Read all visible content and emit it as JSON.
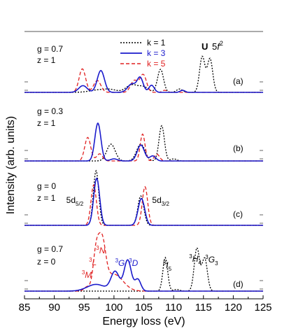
{
  "chart_data": {
    "type": "line",
    "title_element": "U",
    "title_config": "5f",
    "title_config_sup": "2",
    "xlabel": "Energy loss (eV)",
    "ylabel": "Intensity (arb. units)",
    "xlim": [
      85,
      125
    ],
    "x_ticks": [
      85,
      90,
      95,
      100,
      105,
      110,
      115,
      120,
      125
    ],
    "ylim": [
      0,
      4
    ],
    "grid": false,
    "legend_position": "top-center",
    "legend": [
      {
        "name": "k = 1",
        "color": "#000000",
        "dash": "2,2",
        "text_color": "#000000"
      },
      {
        "name": "k = 3",
        "color": "#1a1acc",
        "dash": "",
        "text_color": "#1a1acc"
      },
      {
        "name": "k = 5",
        "color": "#e02020",
        "dash": "5,3",
        "text_color": "#e02020"
      }
    ],
    "panels": [
      {
        "label": "(a)",
        "params": [
          "g = 0.7",
          "z = 1"
        ],
        "series": [
          {
            "k": 1,
            "peaks": [
              [
                97.5,
                0.06,
                1.5
              ],
              [
                99.5,
                0.05,
                1.0
              ],
              [
                103,
                0.18,
                1.0
              ],
              [
                105,
                0.12,
                0.8
              ],
              [
                107.8,
                0.55,
                0.5
              ],
              [
                111,
                0.08,
                0.5
              ],
              [
                114.8,
                0.85,
                0.45
              ],
              [
                116.1,
                0.8,
                0.45
              ]
            ]
          },
          {
            "k": 3,
            "peaks": [
              [
                94.8,
                0.16,
                0.7
              ],
              [
                97.8,
                0.52,
                0.6
              ],
              [
                103,
                0.2,
                0.7
              ],
              [
                104.4,
                0.34,
                0.5
              ],
              [
                106.3,
                0.17,
                0.45
              ],
              [
                111.5,
                0.05,
                0.4
              ]
            ]
          },
          {
            "k": 5,
            "peaks": [
              [
                94.7,
                0.56,
                0.55
              ],
              [
                97.2,
                0.28,
                0.6
              ],
              [
                103.4,
                0.28,
                0.6
              ],
              [
                104.9,
                0.42,
                0.55
              ],
              [
                108.5,
                0.05,
                0.4
              ]
            ]
          }
        ]
      },
      {
        "label": "(b)",
        "params": [
          "g = 0.3",
          "z = 1"
        ],
        "series": [
          {
            "k": 1,
            "peaks": [
              [
                99.5,
                0.4,
                0.7
              ],
              [
                104.5,
                0.4,
                0.7
              ],
              [
                108,
                0.84,
                0.45
              ],
              [
                110,
                0.05,
                0.5
              ]
            ]
          },
          {
            "k": 3,
            "peaks": [
              [
                97.3,
                0.9,
                0.5
              ],
              [
                100,
                0.05,
                0.6
              ],
              [
                104.5,
                0.38,
                0.6
              ],
              [
                106.5,
                0.12,
                0.5
              ]
            ]
          },
          {
            "k": 5,
            "peaks": [
              [
                95.6,
                0.56,
                0.5
              ],
              [
                97.6,
                0.17,
                0.5
              ],
              [
                104.8,
                0.64,
                0.4
              ],
              [
                107.2,
                0.16,
                0.45
              ]
            ]
          }
        ]
      },
      {
        "label": "(c)",
        "params": [
          "g = 0",
          "z = 1"
        ],
        "annotations": [
          {
            "text": "5d",
            "sub": "5/2",
            "x": 92.0
          },
          {
            "text": "5d",
            "sub": "3/2",
            "x": 106.4
          }
        ],
        "series": [
          {
            "k": 1,
            "peaks": [
              [
                97.0,
                1.3,
                0.45
              ],
              [
                104.5,
                0.7,
                0.5
              ]
            ]
          },
          {
            "k": 3,
            "peaks": [
              [
                97.1,
                1.12,
                0.5
              ],
              [
                104.6,
                0.64,
                0.55
              ]
            ]
          },
          {
            "k": 5,
            "peaks": [
              [
                96.6,
                0.96,
                0.45
              ],
              [
                105.2,
                0.92,
                0.45
              ]
            ]
          }
        ]
      },
      {
        "label": "(d)",
        "params": [
          "g = 0.7",
          "z = 0"
        ],
        "annotations": [
          {
            "text": "3N",
            "x": 97.0,
            "color": "#e02020"
          },
          {
            "text": "3L",
            "x": 95.8,
            "color": "#e02020"
          },
          {
            "text": "3M",
            "x": 94.6,
            "color": "#e02020"
          },
          {
            "text": "3G",
            "x": 100.2,
            "color": "#1a1acc"
          },
          {
            "text": "3D",
            "x": 102.5,
            "color": "#1a1acc"
          },
          {
            "text": "3I5",
            "x": 108.2,
            "color": "#000000"
          },
          {
            "text": "3H4",
            "x": 112.6,
            "color": "#000000"
          },
          {
            "text": "3G3",
            "x": 115.3,
            "color": "#000000"
          }
        ],
        "series": [
          {
            "k": 1,
            "peaks": [
              [
                108.6,
                0.8,
                0.4
              ],
              [
                110.5,
                0.04,
                0.5
              ],
              [
                113.9,
                1.02,
                0.45
              ],
              [
                115.2,
                0.78,
                0.45
              ]
            ]
          },
          {
            "k": 3,
            "peaks": [
              [
                97,
                0.16,
                1.5
              ],
              [
                100.2,
                0.46,
                0.7
              ],
              [
                102.3,
                0.74,
                0.6
              ],
              [
                104,
                0.28,
                0.5
              ]
            ]
          },
          {
            "k": 5,
            "peaks": [
              [
                95.5,
                0.1,
                0.5
              ],
              [
                97,
                0.85,
                0.5
              ],
              [
                98,
                1.08,
                0.6
              ],
              [
                100,
                0.4,
                1.5
              ]
            ]
          }
        ]
      }
    ]
  }
}
